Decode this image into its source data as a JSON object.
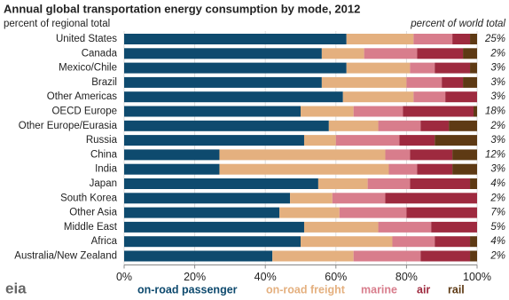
{
  "logo": "eia",
  "chart_data": {
    "type": "stacked-bar-horizontal",
    "title": "Annual global transportation energy consumption by mode, 2012",
    "subtitle": "percent of regional total",
    "categories": [
      "United States",
      "Canada",
      "Mexico/Chile",
      "Brazil",
      "Other Americas",
      "OECD Europe",
      "Other Europe/Eurasia",
      "Russia",
      "China",
      "India",
      "Japan",
      "South Korea",
      "Other Asia",
      "Middle East",
      "Africa",
      "Australia/New Zealand"
    ],
    "series": [
      {
        "name": "on-road passenger",
        "color": "#0e4a6e",
        "values": [
          63,
          56,
          63,
          56,
          62,
          50,
          58,
          51,
          27,
          27,
          55,
          47,
          44,
          51,
          50,
          42
        ]
      },
      {
        "name": "on-road freight",
        "color": "#e4b07f",
        "values": [
          19,
          12,
          18,
          24,
          20,
          15,
          14,
          9,
          47,
          48,
          14,
          12,
          17,
          21,
          26,
          23
        ]
      },
      {
        "name": "marine",
        "color": "#d87d8c",
        "values": [
          11,
          15,
          7,
          10,
          9,
          14,
          12,
          18,
          7,
          8,
          12,
          15,
          19,
          15,
          12,
          19
        ]
      },
      {
        "name": "air",
        "color": "#9e2a3f",
        "values": [
          5,
          13,
          10,
          6,
          9,
          20,
          8,
          10,
          12,
          10,
          17,
          26,
          20,
          13,
          10,
          14
        ]
      },
      {
        "name": "rail",
        "color": "#5e3a14",
        "values": [
          2,
          4,
          2,
          4,
          0,
          1,
          8,
          12,
          7,
          7,
          2,
          0,
          0,
          0,
          2,
          2
        ]
      }
    ],
    "xlim": [
      0,
      100
    ],
    "xticks": [
      {
        "value": 0,
        "label": "0%"
      },
      {
        "value": 20,
        "label": "20%"
      },
      {
        "value": 40,
        "label": "40%"
      },
      {
        "value": 60,
        "label": "60%"
      },
      {
        "value": 80,
        "label": "80%"
      },
      {
        "value": 100,
        "label": "100%"
      }
    ],
    "grid": true,
    "world_share_title": "percent of world total",
    "world_share_labels": [
      "25%",
      "2%",
      "3%",
      "3%",
      "3%",
      "18%",
      "2%",
      "3%",
      "12%",
      "3%",
      "4%",
      "2%",
      "7%",
      "5%",
      "4%",
      "2%"
    ]
  }
}
